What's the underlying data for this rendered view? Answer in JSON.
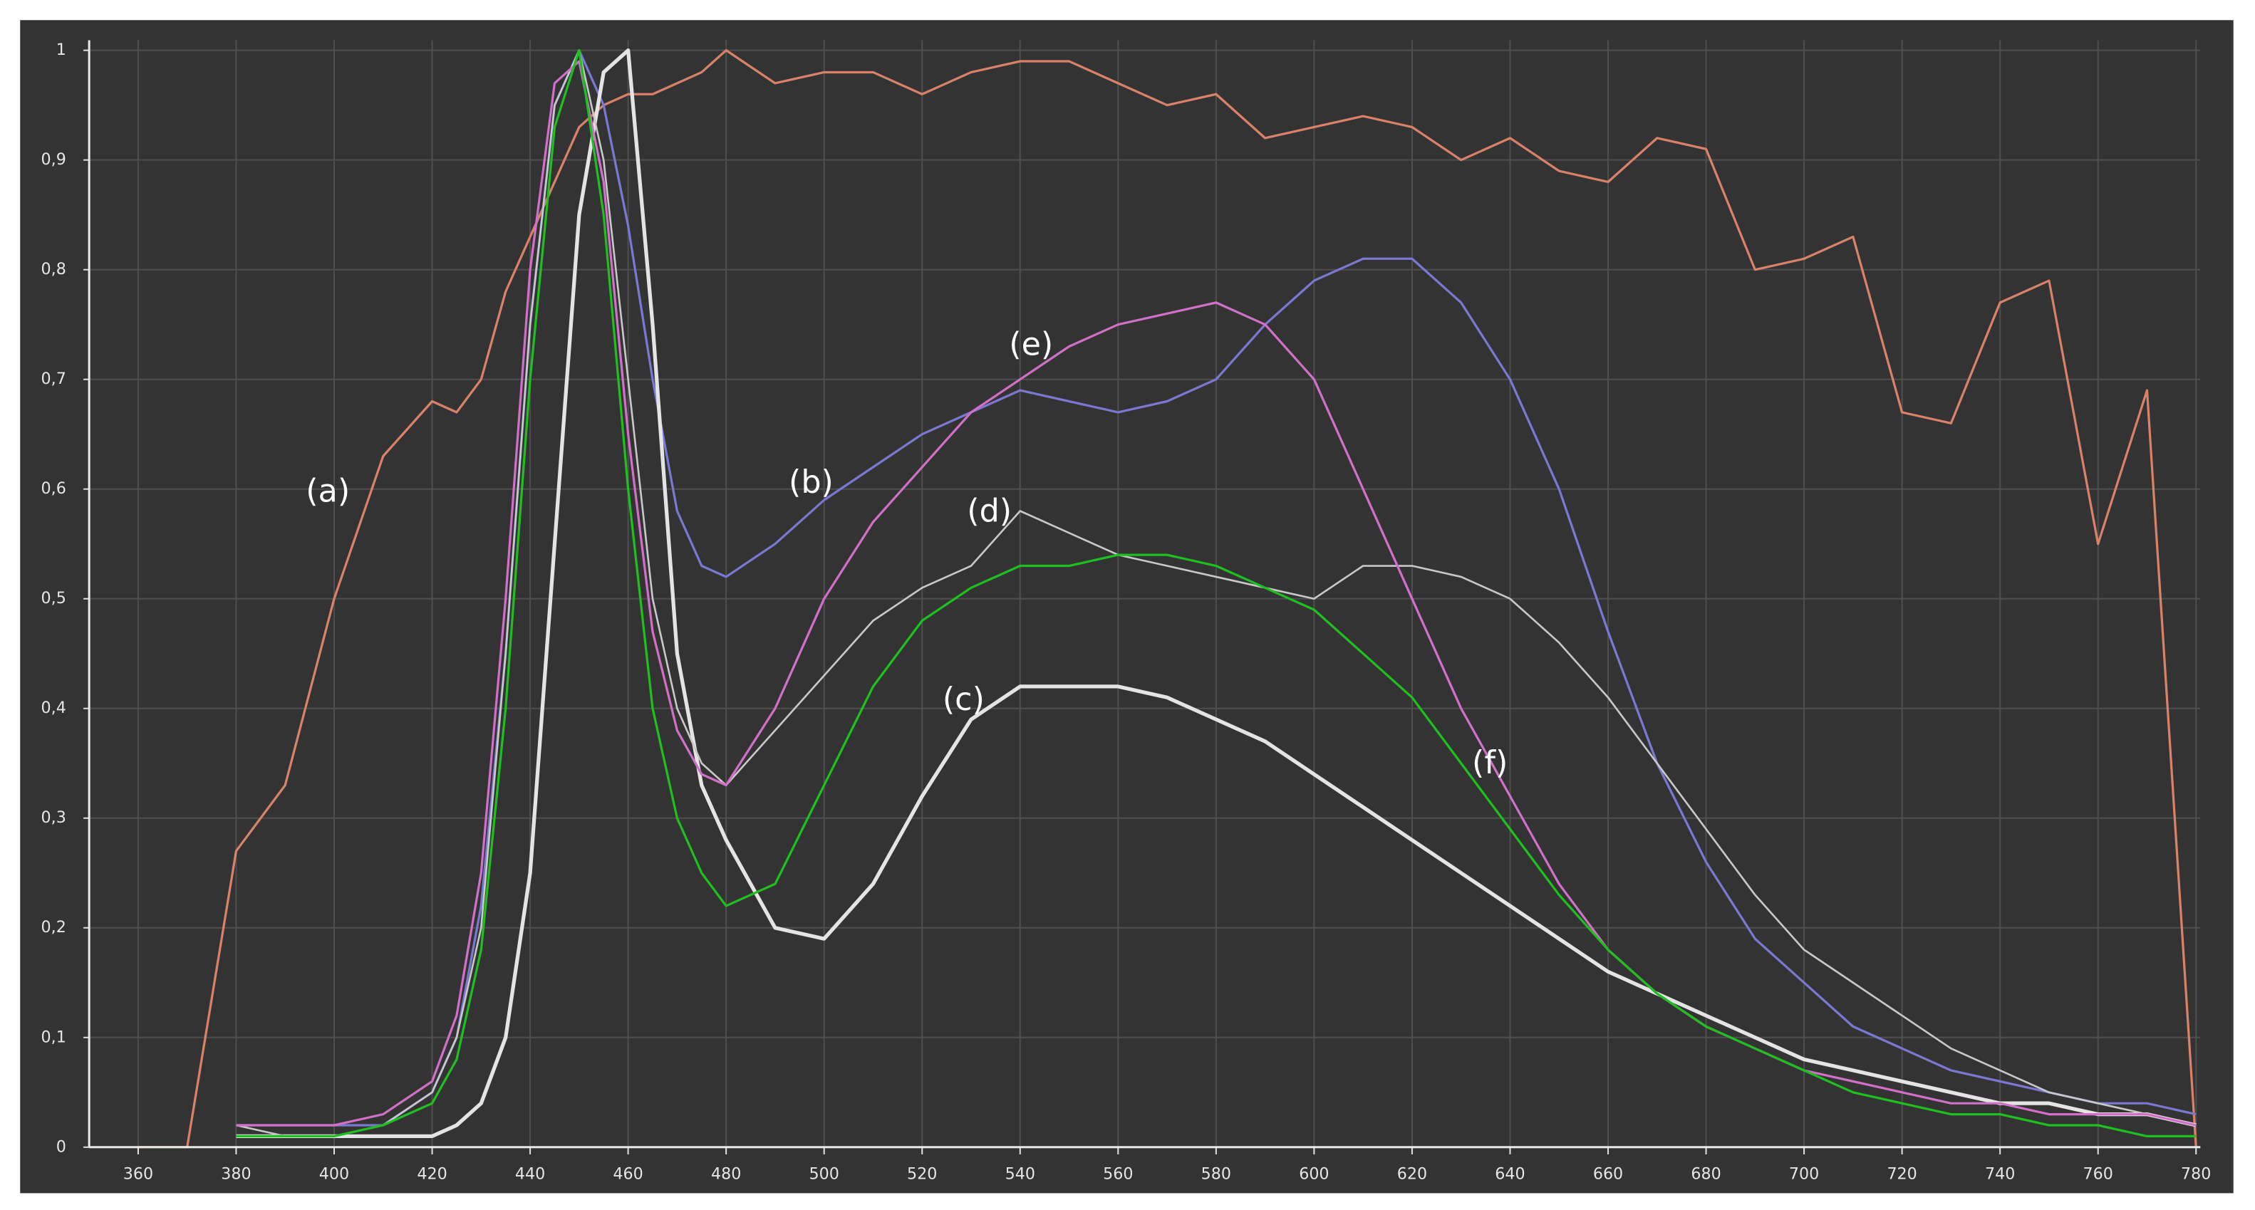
{
  "chart_data": {
    "type": "line",
    "x": [
      360,
      370,
      380,
      390,
      400,
      410,
      420,
      425,
      430,
      435,
      440,
      445,
      450,
      455,
      460,
      465,
      470,
      475,
      480,
      490,
      500,
      510,
      520,
      530,
      540,
      550,
      560,
      570,
      580,
      590,
      600,
      610,
      620,
      630,
      640,
      650,
      660,
      670,
      680,
      690,
      700,
      710,
      720,
      730,
      740,
      750,
      760,
      770,
      780
    ],
    "series": [
      {
        "name": "(a)",
        "color": "#d9826a",
        "values": [
          0,
          0,
          0.27,
          0.33,
          0.5,
          0.63,
          0.68,
          0.67,
          0.7,
          0.78,
          0.83,
          0.88,
          0.93,
          0.95,
          0.96,
          0.96,
          0.97,
          0.98,
          1.0,
          0.97,
          0.98,
          0.98,
          0.96,
          0.98,
          0.99,
          0.99,
          0.97,
          0.95,
          0.96,
          0.92,
          0.93,
          0.94,
          0.93,
          0.9,
          0.92,
          0.89,
          0.88,
          0.92,
          0.91,
          0.8,
          0.81,
          0.83,
          0.67,
          0.66,
          0.77,
          0.79,
          0.55,
          0.69,
          0
        ]
      },
      {
        "name": "(b)",
        "color": "#7a78d0",
        "values": [
          null,
          null,
          0.02,
          0.02,
          0.02,
          0.02,
          0.05,
          0.1,
          0.22,
          0.45,
          0.75,
          0.95,
          1.0,
          0.95,
          0.84,
          0.7,
          0.58,
          0.53,
          0.52,
          0.55,
          0.59,
          0.62,
          0.65,
          0.67,
          0.69,
          0.68,
          0.67,
          0.68,
          0.7,
          0.75,
          0.79,
          0.81,
          0.81,
          0.77,
          0.7,
          0.6,
          0.47,
          0.35,
          0.26,
          0.19,
          0.15,
          0.11,
          0.09,
          0.07,
          0.06,
          0.05,
          0.04,
          0.04,
          0.03
        ]
      },
      {
        "name": "(c)",
        "color": "#e4e4e4",
        "values": [
          null,
          null,
          0.01,
          0.01,
          0.01,
          0.01,
          0.01,
          0.02,
          0.04,
          0.1,
          0.25,
          0.55,
          0.85,
          0.98,
          1.0,
          0.75,
          0.45,
          0.33,
          0.28,
          0.2,
          0.19,
          0.24,
          0.32,
          0.39,
          0.42,
          0.42,
          0.42,
          0.41,
          0.39,
          0.37,
          0.34,
          0.31,
          0.28,
          0.25,
          0.22,
          0.19,
          0.16,
          0.14,
          0.12,
          0.1,
          0.08,
          0.07,
          0.06,
          0.05,
          0.04,
          0.04,
          0.03,
          0.03,
          0.02
        ]
      },
      {
        "name": "(d)",
        "color": "#c8c8c8",
        "values": [
          null,
          null,
          0.02,
          0.01,
          0.01,
          0.02,
          0.05,
          0.1,
          0.2,
          0.45,
          0.75,
          0.95,
          1.0,
          0.9,
          0.7,
          0.5,
          0.4,
          0.35,
          0.33,
          0.38,
          0.43,
          0.48,
          0.51,
          0.53,
          0.58,
          0.56,
          0.54,
          0.53,
          0.52,
          0.51,
          0.5,
          0.53,
          0.53,
          0.52,
          0.5,
          0.46,
          0.41,
          0.35,
          0.29,
          0.23,
          0.18,
          0.15,
          0.12,
          0.09,
          0.07,
          0.05,
          0.04,
          0.03,
          0.02
        ]
      },
      {
        "name": "(e)",
        "color": "#d070c8",
        "values": [
          null,
          null,
          0.02,
          0.02,
          0.02,
          0.03,
          0.06,
          0.12,
          0.25,
          0.5,
          0.8,
          0.97,
          0.99,
          0.88,
          0.65,
          0.47,
          0.38,
          0.34,
          0.33,
          0.4,
          0.5,
          0.57,
          0.62,
          0.67,
          0.7,
          0.73,
          0.75,
          0.76,
          0.77,
          0.75,
          0.7,
          0.6,
          0.5,
          0.4,
          0.32,
          0.24,
          0.18,
          0.14,
          0.11,
          0.09,
          0.07,
          0.06,
          0.05,
          0.04,
          0.04,
          0.03,
          0.03,
          0.03,
          0.02
        ]
      },
      {
        "name": "(f)",
        "color": "#1fbf1f",
        "values": [
          null,
          null,
          0.01,
          0.01,
          0.01,
          0.02,
          0.04,
          0.08,
          0.18,
          0.4,
          0.7,
          0.93,
          1.0,
          0.85,
          0.6,
          0.4,
          0.3,
          0.25,
          0.22,
          0.24,
          0.33,
          0.42,
          0.48,
          0.51,
          0.53,
          0.53,
          0.54,
          0.54,
          0.53,
          0.51,
          0.49,
          0.45,
          0.41,
          0.35,
          0.29,
          0.23,
          0.18,
          0.14,
          0.11,
          0.09,
          0.07,
          0.05,
          0.04,
          0.03,
          0.03,
          0.02,
          0.02,
          0.01,
          0.01
        ]
      }
    ],
    "xlim": [
      350,
      780
    ],
    "ylim": [
      0,
      1
    ],
    "xticks": [
      360,
      380,
      400,
      420,
      440,
      460,
      480,
      500,
      520,
      540,
      560,
      580,
      600,
      620,
      640,
      660,
      680,
      700,
      720,
      740,
      760,
      780
    ],
    "yticks": [
      0,
      {
        "value": 0.1,
        "label": "0,1"
      },
      {
        "value": 0.2,
        "label": "0,2"
      },
      {
        "value": 0.3,
        "label": "0,3"
      },
      {
        "value": 0.4,
        "label": "0,4"
      },
      {
        "value": 0.5,
        "label": "0,5"
      },
      {
        "value": 0.6,
        "label": "0,6"
      },
      {
        "value": 0.7,
        "label": "0,7"
      },
      {
        "value": 0.8,
        "label": "0,8"
      },
      {
        "value": 0.9,
        "label": "0,9"
      },
      1
    ],
    "grid": true
  }
}
